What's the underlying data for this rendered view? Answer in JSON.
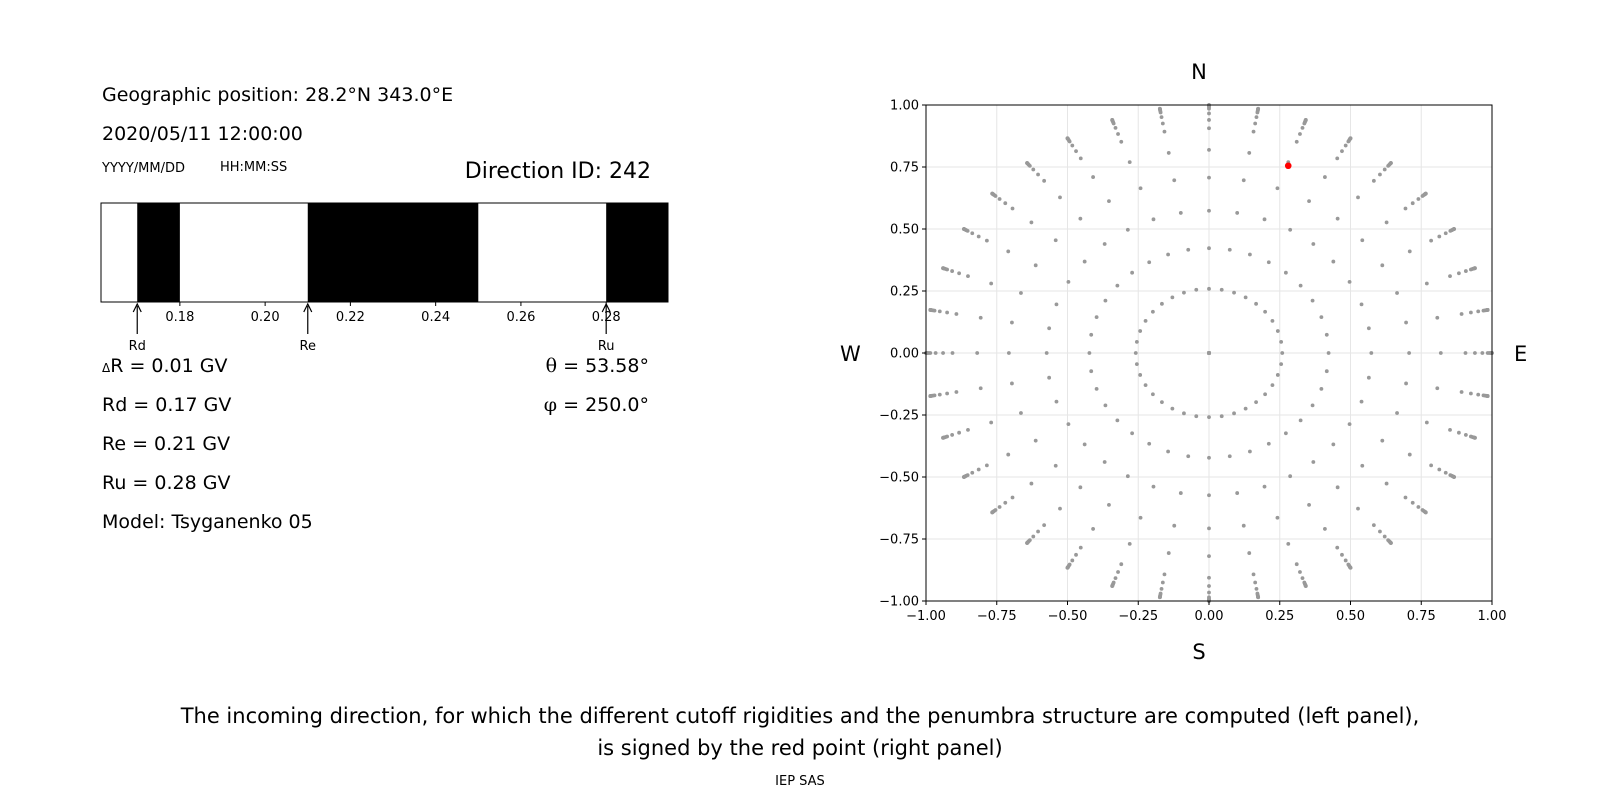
{
  "left_panel": {
    "position_text": "Geographic position: 28.2°N 343.0°E",
    "datetime_text": "2020/05/11 12:00:00",
    "date_format_label": "YYYY/MM/DD",
    "time_format_label": "HH:MM:SS",
    "direction_id_text": "Direction ID: 242",
    "delta_r_symbol": "Δ",
    "delta_r_text": "R = 0.01 GV",
    "rd_text": "Rd = 0.17 GV",
    "re_text": "Re = 0.21 GV",
    "ru_text": "Ru = 0.28 GV",
    "model_text": "Model: Tsyganenko 05",
    "theta_symbol": "θ",
    "theta_text": " = 53.58°",
    "phi_symbol": "φ",
    "phi_text": " = 250.0°"
  },
  "caption": {
    "line1": "The incoming direction, for which the different cutoff rigidities and the penumbra structure are computed (left panel),",
    "line2": "is signed by the red point (right panel)"
  },
  "footer": "IEP SAS",
  "chart_data": [
    {
      "type": "bar",
      "xlim": [
        0.1615,
        0.2945
      ],
      "xticks": [
        "0.18",
        "0.20",
        "0.22",
        "0.24",
        "0.26",
        "0.28"
      ],
      "xtick_values": [
        0.18,
        0.2,
        0.22,
        0.24,
        0.26,
        0.28
      ],
      "black_segments": [
        [
          0.17,
          0.18
        ],
        [
          0.21,
          0.25
        ],
        [
          0.28,
          0.2945
        ]
      ],
      "markers": [
        {
          "label": "Rd",
          "value": 0.17
        },
        {
          "label": "Re",
          "value": 0.21
        },
        {
          "label": "Ru",
          "value": 0.28
        }
      ],
      "segment_color": "#000000"
    },
    {
      "type": "scatter",
      "xlim": [
        -1.0,
        1.0
      ],
      "ylim": [
        -1.0,
        1.0
      ],
      "xticks": [
        "−1.00",
        "−0.75",
        "−0.50",
        "−0.25",
        "0.00",
        "0.25",
        "0.50",
        "0.75",
        "1.00"
      ],
      "yticks": [
        "−1.00",
        "−0.75",
        "−0.50",
        "−0.25",
        "0.00",
        "0.25",
        "0.50",
        "0.75",
        "1.00"
      ],
      "tick_values": [
        -1.0,
        -0.75,
        -0.5,
        -0.25,
        0.0,
        0.25,
        0.5,
        0.75,
        1.0
      ],
      "grid": true,
      "compass": {
        "north": "N",
        "south": "S",
        "west": "W",
        "east": "E"
      },
      "directions": {
        "zenith_angles_deg": [
          0,
          15,
          25,
          35,
          45,
          55,
          65,
          70,
          75,
          80,
          82,
          84,
          86,
          88,
          89,
          90
        ],
        "azimuth_step_deg": 10,
        "point_color": "#999999"
      },
      "highlight": {
        "x": 0.28,
        "y": 0.755,
        "color": "#ff0000"
      }
    }
  ]
}
